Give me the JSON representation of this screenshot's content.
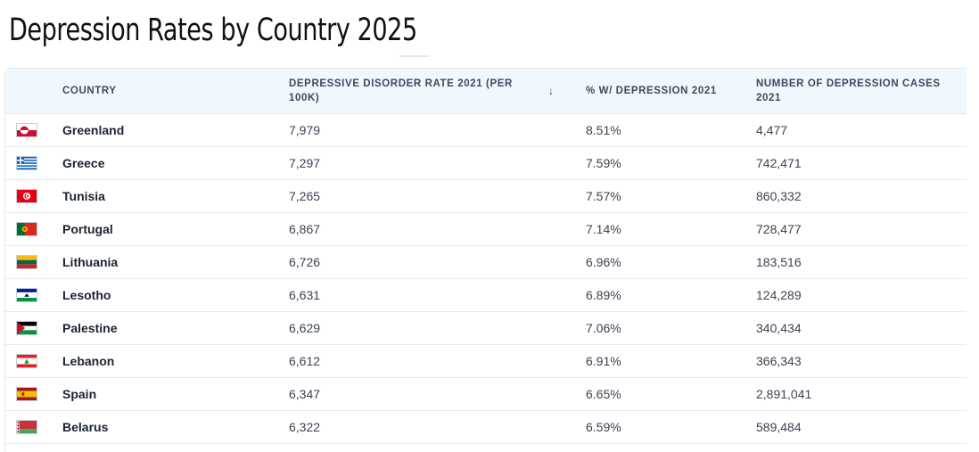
{
  "page": {
    "title": "Depression Rates by Country 2025"
  },
  "table": {
    "headers": {
      "country": "COUNTRY",
      "rate": "DEPRESSIVE DISORDER RATE 2021 (PER 100K)",
      "pct": "% W/ DEPRESSION 2021",
      "cases": "NUMBER OF DEPRESSION CASES 2021"
    },
    "sort_icon": "arrow-down-icon",
    "rows": [
      {
        "flag": "greenland-flag-icon",
        "country": "Greenland",
        "rate": "7,979",
        "pct": "8.51%",
        "cases": "4,477"
      },
      {
        "flag": "greece-flag-icon",
        "country": "Greece",
        "rate": "7,297",
        "pct": "7.59%",
        "cases": "742,471"
      },
      {
        "flag": "tunisia-flag-icon",
        "country": "Tunisia",
        "rate": "7,265",
        "pct": "7.57%",
        "cases": "860,332"
      },
      {
        "flag": "portugal-flag-icon",
        "country": "Portugal",
        "rate": "6,867",
        "pct": "7.14%",
        "cases": "728,477"
      },
      {
        "flag": "lithuania-flag-icon",
        "country": "Lithuania",
        "rate": "6,726",
        "pct": "6.96%",
        "cases": "183,516"
      },
      {
        "flag": "lesotho-flag-icon",
        "country": "Lesotho",
        "rate": "6,631",
        "pct": "6.89%",
        "cases": "124,289"
      },
      {
        "flag": "palestine-flag-icon",
        "country": "Palestine",
        "rate": "6,629",
        "pct": "7.06%",
        "cases": "340,434"
      },
      {
        "flag": "lebanon-flag-icon",
        "country": "Lebanon",
        "rate": "6,612",
        "pct": "6.91%",
        "cases": "366,343"
      },
      {
        "flag": "spain-flag-icon",
        "country": "Spain",
        "rate": "6,347",
        "pct": "6.65%",
        "cases": "2,891,041"
      },
      {
        "flag": "belarus-flag-icon",
        "country": "Belarus",
        "rate": "6,322",
        "pct": "6.59%",
        "cases": "589,484"
      }
    ]
  },
  "colors": {
    "header_bg": "#f0f7fd",
    "header_text": "#3d4a5c",
    "row_border": "#e8ebf0"
  }
}
